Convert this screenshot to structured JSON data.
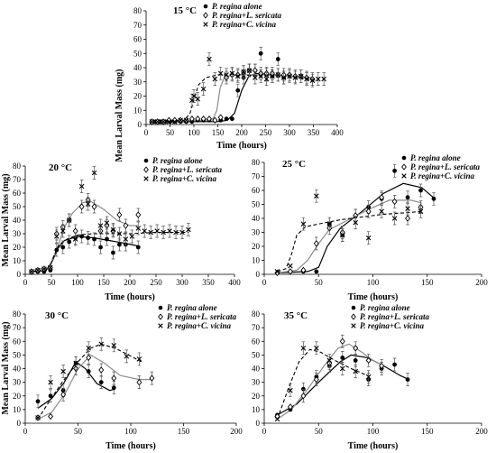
{
  "chart_data": [
    {
      "type": "scatter",
      "title": "15 °C",
      "xlabel": "Time (hours)",
      "ylabel": "Mean Larval Mass (mg)",
      "xlim": [
        0,
        400
      ],
      "ylim": [
        0,
        80
      ],
      "xticks": [
        0,
        50,
        100,
        150,
        200,
        250,
        300,
        350,
        400
      ],
      "yticks": [
        0,
        10,
        20,
        30,
        40,
        50,
        60,
        70,
        80
      ],
      "legend_position": "top-right",
      "series": [
        {
          "name": "P. regina alone",
          "marker": "dot",
          "x": [
            12,
            20,
            30,
            40,
            50,
            60,
            72,
            84,
            96,
            108,
            120,
            132,
            144,
            156,
            168,
            180,
            192,
            204,
            216,
            228,
            240,
            252,
            264,
            276,
            288
          ],
          "y": [
            2,
            2,
            2,
            2,
            2,
            2,
            2,
            2,
            2,
            3,
            3,
            3,
            3,
            3,
            4,
            4,
            24,
            33,
            38,
            38,
            50,
            35,
            34,
            46,
            33
          ],
          "fit_x": [
            12,
            150,
            170,
            185,
            200,
            215,
            230,
            260,
            300,
            340
          ],
          "fit_y": [
            2,
            2,
            3,
            8,
            24,
            34,
            36,
            35,
            34,
            33
          ]
        },
        {
          "name": "P. regina+L. sericata",
          "marker": "diamond",
          "x": [
            12,
            24,
            36,
            48,
            60,
            72,
            84,
            96,
            108,
            120,
            132,
            144,
            156,
            168,
            180,
            192,
            204,
            216,
            228,
            240,
            252,
            264,
            276,
            288,
            300,
            312,
            324,
            336,
            348
          ],
          "y": [
            2,
            2,
            2,
            3,
            3,
            3,
            3,
            4,
            4,
            4,
            4,
            3,
            5,
            33,
            35,
            35,
            37,
            38,
            38,
            36,
            36,
            36,
            35,
            35,
            35,
            34,
            34,
            33,
            32
          ],
          "fit_x": [
            12,
            120,
            140,
            148,
            155,
            165,
            200,
            250,
            300,
            350
          ],
          "fit_y": [
            3,
            3,
            4,
            10,
            26,
            34,
            35,
            35,
            34,
            33
          ]
        },
        {
          "name": "P. regina+C. vicina",
          "marker": "cross",
          "x": [
            12,
            24,
            36,
            48,
            60,
            72,
            84,
            96,
            100,
            108,
            120,
            132,
            144,
            156,
            168,
            180,
            192,
            204,
            216,
            228,
            240,
            252,
            264,
            276,
            288,
            300,
            312,
            324,
            336,
            348,
            360,
            372
          ],
          "y": [
            2,
            2,
            2,
            2,
            2,
            3,
            3,
            17,
            20,
            18,
            25,
            46,
            32,
            36,
            35,
            36,
            34,
            37,
            38,
            33,
            34,
            32,
            34,
            35,
            33,
            34,
            33,
            34,
            32,
            31,
            32,
            32
          ],
          "fit_x": [
            12,
            80,
            92,
            100,
            110,
            125,
            150,
            200,
            250,
            300,
            360
          ],
          "fit_y": [
            2,
            3,
            8,
            18,
            28,
            33,
            35,
            35,
            34,
            33,
            31
          ]
        }
      ]
    },
    {
      "type": "scatter",
      "title": "20 °C",
      "xlabel": "Time (hours)",
      "ylabel": "Mean Larval Mass (mg)",
      "xlim": [
        0,
        400
      ],
      "ylim": [
        0,
        80
      ],
      "xticks": [
        0,
        50,
        100,
        150,
        200,
        250,
        300,
        350,
        400
      ],
      "yticks": [
        0,
        10,
        20,
        30,
        40,
        50,
        60,
        70,
        80
      ],
      "legend_position": "top-right",
      "series": [
        {
          "name": "P. regina alone",
          "marker": "dot",
          "x": [
            12,
            24,
            36,
            48,
            60,
            72,
            84,
            96,
            108,
            120,
            132,
            144,
            156,
            168,
            180,
            192,
            216
          ],
          "y": [
            2,
            2,
            2,
            3,
            18,
            20,
            24,
            27,
            28,
            27,
            26,
            20,
            26,
            16,
            22,
            22,
            20
          ],
          "fit_x": [
            12,
            40,
            52,
            62,
            75,
            100,
            130,
            160,
            190,
            215
          ],
          "fit_y": [
            2,
            3,
            10,
            19,
            25,
            28,
            27,
            25,
            23,
            21
          ]
        },
        {
          "name": "P. regina+L. sericata",
          "marker": "diamond",
          "x": [
            12,
            24,
            36,
            48,
            60,
            72,
            84,
            96,
            108,
            120,
            132,
            144,
            156,
            168,
            180,
            192,
            216
          ],
          "y": [
            2,
            3,
            4,
            5,
            30,
            35,
            40,
            32,
            50,
            55,
            50,
            32,
            36,
            32,
            44,
            36,
            44
          ],
          "fit_x": [
            12,
            45,
            60,
            75,
            90,
            110,
            125,
            150,
            175,
            200,
            216
          ],
          "fit_y": [
            3,
            5,
            18,
            35,
            45,
            53,
            54,
            48,
            40,
            36,
            36
          ]
        },
        {
          "name": "P. regina+C. vicina",
          "marker": "cross",
          "x": [
            12,
            24,
            36,
            48,
            60,
            72,
            84,
            96,
            108,
            120,
            132,
            144,
            156,
            168,
            180,
            192,
            204,
            216,
            228,
            240,
            252,
            264,
            276,
            288,
            300,
            312
          ],
          "y": [
            2,
            3,
            4,
            5,
            28,
            32,
            40,
            26,
            65,
            52,
            75,
            36,
            38,
            33,
            30,
            26,
            28,
            34,
            32,
            31,
            32,
            31,
            32,
            31,
            31,
            33
          ],
          "fit_x": [
            12,
            45,
            55,
            65,
            80,
            100,
            130,
            160,
            200,
            250,
            312
          ],
          "fit_y": [
            2,
            3,
            14,
            22,
            26,
            29,
            30,
            30,
            30,
            31,
            31
          ]
        }
      ]
    },
    {
      "type": "scatter",
      "title": "25 °C",
      "xlabel": "Time (hours)",
      "ylabel": "",
      "xlim": [
        0,
        200
      ],
      "ylim": [
        0,
        80
      ],
      "xticks": [
        0,
        50,
        100,
        150,
        200
      ],
      "yticks": [
        0,
        10,
        20,
        30,
        40,
        50,
        60,
        70,
        80
      ],
      "legend_position": "top-right",
      "series": [
        {
          "name": "P. regina alone",
          "marker": "dot",
          "x": [
            12,
            24,
            36,
            48,
            60,
            72,
            84,
            96,
            108,
            120,
            132,
            144,
            156
          ],
          "y": [
            1,
            2,
            2,
            2,
            36,
            28,
            42,
            48,
            54,
            74,
            55,
            60,
            54
          ],
          "fit_x": [
            12,
            40,
            50,
            58,
            70,
            90,
            110,
            128,
            145,
            157
          ],
          "fit_y": [
            1,
            2,
            5,
            20,
            33,
            45,
            58,
            65,
            62,
            54
          ]
        },
        {
          "name": "P. regina+L. sericata",
          "marker": "diamond",
          "x": [
            12,
            24,
            36,
            48,
            60,
            72,
            84,
            96,
            108,
            120,
            132,
            144
          ],
          "y": [
            1,
            2,
            3,
            22,
            33,
            30,
            42,
            45,
            55,
            52,
            40,
            48
          ],
          "fit_x": [
            12,
            30,
            40,
            50,
            60,
            75,
            95,
            115,
            135,
            145
          ],
          "fit_y": [
            1,
            3,
            10,
            22,
            32,
            38,
            46,
            53,
            53,
            51
          ]
        },
        {
          "name": "P. regina+C. vicina",
          "marker": "cross",
          "x": [
            12,
            24,
            36,
            48,
            60,
            72,
            84,
            96,
            108,
            120,
            132,
            144
          ],
          "y": [
            2,
            6,
            36,
            56,
            36,
            28,
            37,
            26,
            45,
            40,
            47,
            45
          ],
          "fit_x": [
            12,
            20,
            25,
            30,
            38,
            50,
            70,
            90,
            110,
            130,
            145
          ],
          "fit_y": [
            2,
            4,
            14,
            28,
            34,
            36,
            39,
            41,
            43,
            44,
            45
          ]
        }
      ]
    },
    {
      "type": "scatter",
      "title": "30 °C",
      "xlabel": "Time (hours)",
      "ylabel": "Mean Larval Mass (mg)",
      "xlim": [
        0,
        200
      ],
      "ylim": [
        0,
        80
      ],
      "xticks": [
        0,
        50,
        100,
        150,
        200
      ],
      "yticks": [
        0,
        10,
        20,
        30,
        40,
        50,
        60,
        70,
        80
      ],
      "legend_position": "top-right",
      "series": [
        {
          "name": "P. regina alone",
          "marker": "dot",
          "x": [
            12,
            24,
            36,
            48,
            60,
            72,
            84
          ],
          "y": [
            16,
            20,
            24,
            44,
            38,
            30,
            26
          ],
          "fit_x": [
            12,
            25,
            37,
            48,
            57,
            68,
            80,
            85
          ],
          "fit_y": [
            11,
            18,
            30,
            45,
            40,
            29,
            24,
            25
          ]
        },
        {
          "name": "P. regina+L. sericata",
          "marker": "diamond",
          "x": [
            12,
            24,
            36,
            48,
            60,
            72,
            84,
            108,
            120
          ],
          "y": [
            4,
            5,
            21,
            40,
            48,
            39,
            33,
            30,
            33
          ],
          "fit_x": [
            12,
            25,
            38,
            50,
            62,
            75,
            90,
            108,
            120
          ],
          "fit_y": [
            3,
            8,
            22,
            40,
            50,
            44,
            35,
            32,
            32
          ]
        },
        {
          "name": "P. regina+C. vicina",
          "marker": "cross",
          "x": [
            12,
            24,
            36,
            48,
            60,
            72,
            84,
            96,
            108
          ],
          "y": [
            4,
            30,
            38,
            44,
            55,
            58,
            57,
            49,
            47
          ],
          "fit_x": [
            12,
            22,
            35,
            50,
            62,
            72,
            85,
            98,
            110
          ],
          "fit_y": [
            3,
            15,
            30,
            45,
            55,
            58,
            55,
            50,
            45
          ]
        }
      ]
    },
    {
      "type": "scatter",
      "title": "35 °C",
      "xlabel": "Time (hours)",
      "ylabel": "",
      "xlim": [
        0,
        200
      ],
      "ylim": [
        0,
        80
      ],
      "xticks": [
        0,
        50,
        100,
        150,
        200
      ],
      "yticks": [
        0,
        10,
        20,
        30,
        40,
        50,
        60,
        70,
        80
      ],
      "legend_position": "top-right",
      "series": [
        {
          "name": "P. regina alone",
          "marker": "dot",
          "x": [
            12,
            24,
            36,
            48,
            60,
            72,
            84,
            96,
            108,
            120,
            132
          ],
          "y": [
            6,
            10,
            25,
            34,
            42,
            48,
            46,
            32,
            40,
            43,
            32
          ],
          "fit_x": [
            12,
            30,
            50,
            70,
            80,
            95,
            110,
            125,
            133
          ],
          "fit_y": [
            6,
            14,
            30,
            45,
            50,
            48,
            42,
            35,
            32
          ]
        },
        {
          "name": "P. regina+L. sericata",
          "marker": "diamond",
          "x": [
            12,
            24,
            36,
            48,
            60,
            72,
            84,
            96,
            108
          ],
          "y": [
            5,
            12,
            20,
            32,
            44,
            60,
            55,
            46,
            42
          ],
          "fit_x": [
            12,
            25,
            40,
            55,
            68,
            78,
            90,
            100,
            110
          ],
          "fit_y": [
            3,
            10,
            25,
            42,
            55,
            58,
            52,
            46,
            42
          ]
        },
        {
          "name": "P. regina+C. vicina",
          "marker": "cross",
          "x": [
            12,
            24,
            36,
            48,
            60,
            72,
            84,
            96
          ],
          "y": [
            3,
            24,
            55,
            55,
            46,
            40,
            38,
            34
          ],
          "fit_x": [
            12,
            22,
            32,
            42,
            52,
            65,
            80,
            95
          ],
          "fit_y": [
            3,
            25,
            45,
            54,
            52,
            46,
            40,
            35
          ]
        }
      ]
    }
  ]
}
